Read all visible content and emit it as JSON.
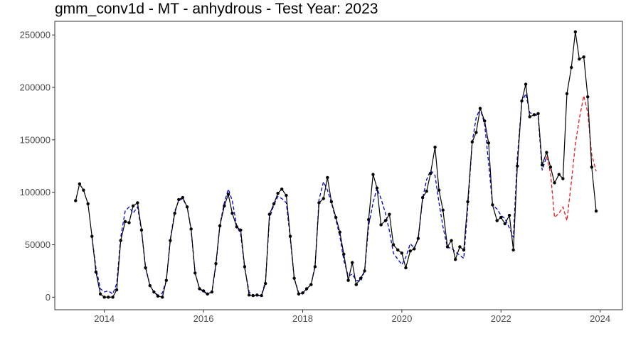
{
  "chart_data": {
    "type": "line",
    "title": "gmm_conv1d - MT - anhydrous - Test Year: 2023",
    "xlabel": "",
    "ylabel": "",
    "xlim": [
      2013.0,
      2024.45
    ],
    "ylim": [
      -12000,
      263000
    ],
    "x_ticks": [
      2014,
      2016,
      2018,
      2020,
      2022,
      2024
    ],
    "x_tick_labels": [
      "2014",
      "2016",
      "2018",
      "2020",
      "2022",
      "2024"
    ],
    "y_ticks": [
      0,
      50000,
      100000,
      150000,
      200000,
      250000
    ],
    "y_tick_labels": [
      "0",
      "50000",
      "100000",
      "150000",
      "200000",
      "250000"
    ],
    "grid": false,
    "series": [
      {
        "role": "actual",
        "color": "#000000",
        "style": "solid",
        "markers": true,
        "x": [
          2013.42,
          2013.5,
          2013.58,
          2013.67,
          2013.75,
          2013.83,
          2013.92,
          2014.0,
          2014.08,
          2014.17,
          2014.25,
          2014.33,
          2014.42,
          2014.5,
          2014.58,
          2014.67,
          2014.75,
          2014.83,
          2014.92,
          2015.0,
          2015.08,
          2015.17,
          2015.25,
          2015.33,
          2015.42,
          2015.5,
          2015.58,
          2015.67,
          2015.75,
          2015.83,
          2015.92,
          2016.0,
          2016.08,
          2016.17,
          2016.25,
          2016.33,
          2016.42,
          2016.5,
          2016.58,
          2016.67,
          2016.75,
          2016.83,
          2016.92,
          2017.0,
          2017.08,
          2017.17,
          2017.25,
          2017.33,
          2017.42,
          2017.5,
          2017.58,
          2017.67,
          2017.75,
          2017.83,
          2017.92,
          2018.0,
          2018.08,
          2018.17,
          2018.25,
          2018.33,
          2018.42,
          2018.5,
          2018.58,
          2018.67,
          2018.75,
          2018.83,
          2018.92,
          2019.0,
          2019.08,
          2019.17,
          2019.25,
          2019.33,
          2019.42,
          2019.5,
          2019.58,
          2019.67,
          2019.75,
          2019.83,
          2019.92,
          2020.0,
          2020.08,
          2020.17,
          2020.25,
          2020.33,
          2020.42,
          2020.5,
          2020.58,
          2020.67,
          2020.75,
          2020.83,
          2020.92,
          2021.0,
          2021.08,
          2021.17,
          2021.25,
          2021.33,
          2021.42,
          2021.5,
          2021.58,
          2021.67,
          2021.75,
          2021.83,
          2021.92,
          2022.0,
          2022.08,
          2022.17,
          2022.25,
          2022.33,
          2022.42,
          2022.5,
          2022.58,
          2022.67,
          2022.75,
          2022.83,
          2022.92,
          2023.0,
          2023.08,
          2023.17,
          2023.25,
          2023.33,
          2023.42,
          2023.5,
          2023.58,
          2023.67,
          2023.75,
          2023.83,
          2023.92
        ],
        "y": [
          92000,
          108000,
          102000,
          89000,
          58000,
          24000,
          3000,
          0,
          0,
          0,
          7000,
          54000,
          72000,
          71000,
          87000,
          90000,
          64000,
          28000,
          11000,
          5000,
          1000,
          0,
          16000,
          54000,
          80000,
          93000,
          95000,
          86000,
          65000,
          23000,
          8000,
          6000,
          3000,
          5000,
          32000,
          68000,
          87000,
          98000,
          80000,
          67000,
          64000,
          29000,
          2000,
          1500,
          2000,
          1500,
          13000,
          79000,
          89000,
          99000,
          103000,
          97000,
          58000,
          18000,
          3000,
          4000,
          8000,
          12000,
          29000,
          90000,
          94000,
          114000,
          91000,
          76000,
          62000,
          41000,
          16000,
          33000,
          12000,
          18000,
          25000,
          74000,
          117000,
          104000,
          69000,
          73000,
          79000,
          50000,
          45000,
          42000,
          28000,
          44000,
          46000,
          56000,
          95000,
          101000,
          118000,
          143000,
          102000,
          83000,
          48000,
          54000,
          36000,
          48000,
          45000,
          91000,
          148000,
          157000,
          180000,
          168000,
          147000,
          88000,
          73000,
          76000,
          70000,
          78000,
          45000,
          125000,
          187000,
          203000,
          172000,
          174000,
          175000,
          126000,
          138000,
          124000,
          109000,
          117000,
          113000,
          194000,
          219000,
          253000,
          227000,
          229000,
          191000,
          124000,
          82000
        ]
      },
      {
        "role": "fitted",
        "color": "#0000cc",
        "style": "dashed",
        "markers": false,
        "x": [
          2013.75,
          2013.83,
          2013.92,
          2014.0,
          2014.08,
          2014.17,
          2014.25,
          2014.33,
          2014.42,
          2014.5,
          2014.58,
          2014.67,
          2014.75,
          2014.83,
          2014.92,
          2015.0,
          2015.08,
          2015.17,
          2015.25,
          2015.33,
          2015.42,
          2015.5,
          2015.58,
          2015.67,
          2015.75,
          2015.83,
          2015.92,
          2016.0,
          2016.08,
          2016.17,
          2016.25,
          2016.33,
          2016.42,
          2016.5,
          2016.58,
          2016.67,
          2016.75,
          2016.83,
          2016.92,
          2017.0,
          2017.08,
          2017.17,
          2017.25,
          2017.33,
          2017.42,
          2017.5,
          2017.58,
          2017.67,
          2017.75,
          2017.83,
          2017.92,
          2018.0,
          2018.08,
          2018.17,
          2018.25,
          2018.33,
          2018.42,
          2018.5,
          2018.58,
          2018.67,
          2018.75,
          2018.83,
          2018.92,
          2019.0,
          2019.08,
          2019.17,
          2019.25,
          2019.33,
          2019.42,
          2019.5,
          2019.58,
          2019.67,
          2019.75,
          2019.83,
          2019.92,
          2020.0,
          2020.08,
          2020.17,
          2020.25,
          2020.33,
          2020.42,
          2020.5,
          2020.58,
          2020.67,
          2020.75,
          2020.83,
          2020.92,
          2021.0,
          2021.08,
          2021.17,
          2021.25,
          2021.33,
          2021.42,
          2021.5,
          2021.58,
          2021.67,
          2021.75,
          2021.83,
          2021.92,
          2022.0,
          2022.08,
          2022.17,
          2022.25,
          2022.33,
          2022.42,
          2022.5,
          2022.58,
          2022.67,
          2022.75,
          2022.83,
          2022.92
        ],
        "y": [
          57000,
          28000,
          8000,
          5000,
          6000,
          3000,
          13000,
          57000,
          82000,
          86000,
          80000,
          86000,
          63000,
          29000,
          11000,
          5000,
          2000,
          4000,
          16000,
          55000,
          82000,
          92000,
          94000,
          86000,
          64000,
          23000,
          8000,
          5000,
          3000,
          5000,
          30000,
          69000,
          90000,
          103000,
          92000,
          68000,
          60000,
          28000,
          5000,
          2000,
          1000,
          2000,
          15000,
          75000,
          88000,
          96000,
          94000,
          90000,
          56000,
          18000,
          4000,
          3000,
          7000,
          12000,
          30000,
          93000,
          110000,
          102000,
          90000,
          74000,
          58000,
          35000,
          20000,
          22000,
          16000,
          15000,
          25000,
          68000,
          90000,
          104000,
          94000,
          80000,
          63000,
          42000,
          36000,
          31000,
          38000,
          51000,
          47000,
          55000,
          94000,
          112000,
          121000,
          116000,
          90000,
          67000,
          47000,
          47000,
          43000,
          40000,
          37000,
          86000,
          148000,
          171000,
          180000,
          165000,
          128000,
          88000,
          84000,
          78000,
          75000,
          66000,
          57000,
          133000,
          186000,
          194000,
          176000,
          174000,
          173000,
          121000,
          134000
        ]
      },
      {
        "role": "forecast",
        "color": "#e41a1c",
        "style": "dashed",
        "markers": false,
        "x": [
          2022.92,
          2023.0,
          2023.08,
          2023.17,
          2023.25,
          2023.33,
          2023.42,
          2023.5,
          2023.58,
          2023.67,
          2023.75,
          2023.83,
          2023.92
        ],
        "y": [
          134000,
          118000,
          76000,
          80000,
          86000,
          73000,
          110000,
          146000,
          170000,
          192000,
          176000,
          136000,
          120000
        ]
      }
    ]
  }
}
